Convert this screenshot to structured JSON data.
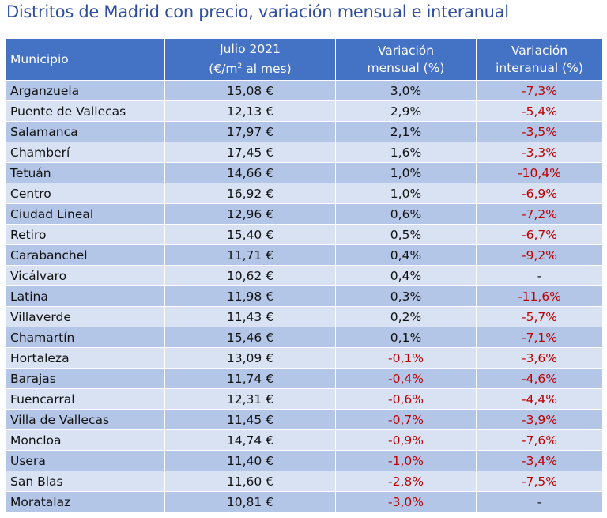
{
  "title": "Distritos de Madrid con precio, variación mensual e interanual",
  "headers": {
    "municipio": "Municipio",
    "price_line1": "Julio 2021",
    "price_line2_prefix": "(€/m",
    "price_line2_sup": "2",
    "price_line2_suffix": " al mes)",
    "monthly_line1": "Variación",
    "monthly_line2": "mensual (%)",
    "yearly_line1": "Variación",
    "yearly_line2": "interanual (%)"
  },
  "rows": [
    {
      "municipio": "Arganzuela",
      "precio": "15,08 €",
      "mensual": "3,0%",
      "interanual": "-7,3%"
    },
    {
      "municipio": "Puente de Vallecas",
      "precio": "12,13 €",
      "mensual": "2,9%",
      "interanual": "-5,4%"
    },
    {
      "municipio": "Salamanca",
      "precio": "17,97 €",
      "mensual": "2,1%",
      "interanual": "-3,5%"
    },
    {
      "municipio": "Chamberí",
      "precio": "17,45 €",
      "mensual": "1,6%",
      "interanual": "-3,3%"
    },
    {
      "municipio": "Tetuán",
      "precio": "14,66 €",
      "mensual": "1,0%",
      "interanual": "-10,4%"
    },
    {
      "municipio": "Centro",
      "precio": "16,92 €",
      "mensual": "1,0%",
      "interanual": "-6,9%"
    },
    {
      "municipio": "Ciudad Lineal",
      "precio": "12,96 €",
      "mensual": "0,6%",
      "interanual": "-7,2%"
    },
    {
      "municipio": "Retiro",
      "precio": "15,40 €",
      "mensual": "0,5%",
      "interanual": "-6,7%"
    },
    {
      "municipio": "Carabanchel",
      "precio": "11,71 €",
      "mensual": "0,4%",
      "interanual": "-9,2%"
    },
    {
      "municipio": "Vicálvaro",
      "precio": "10,62 €",
      "mensual": "0,4%",
      "interanual": "-"
    },
    {
      "municipio": "Latina",
      "precio": "11,98 €",
      "mensual": "0,3%",
      "interanual": "-11,6%"
    },
    {
      "municipio": "Villaverde",
      "precio": "11,43 €",
      "mensual": "0,2%",
      "interanual": "-5,7%"
    },
    {
      "municipio": "Chamartín",
      "precio": "15,46 €",
      "mensual": "0,1%",
      "interanual": "-7,1%"
    },
    {
      "municipio": "Hortaleza",
      "precio": "13,09 €",
      "mensual": "-0,1%",
      "interanual": "-3,6%"
    },
    {
      "municipio": "Barajas",
      "precio": "11,74 €",
      "mensual": "-0,4%",
      "interanual": "-4,6%"
    },
    {
      "municipio": "Fuencarral",
      "precio": "12,31 €",
      "mensual": "-0,6%",
      "interanual": "-4,4%"
    },
    {
      "municipio": "Villa de Vallecas",
      "precio": "11,45 €",
      "mensual": "-0,7%",
      "interanual": "-3,9%"
    },
    {
      "municipio": "Moncloa",
      "precio": "14,74 €",
      "mensual": "-0,9%",
      "interanual": "-7,6%"
    },
    {
      "municipio": "Usera",
      "precio": "11,40 €",
      "mensual": "-1,0%",
      "interanual": "-3,4%"
    },
    {
      "municipio": "San Blas",
      "precio": "11,60 €",
      "mensual": "-2,8%",
      "interanual": "-7,5%"
    },
    {
      "municipio": "Moratalaz",
      "precio": "10,81 €",
      "mensual": "-3,0%",
      "interanual": "-"
    }
  ],
  "colors": {
    "header_bg": "#4472c4",
    "row_dark": "#b4c6e7",
    "row_light": "#d9e2f3",
    "negative": "#c00000",
    "title": "#2f4ea0"
  }
}
